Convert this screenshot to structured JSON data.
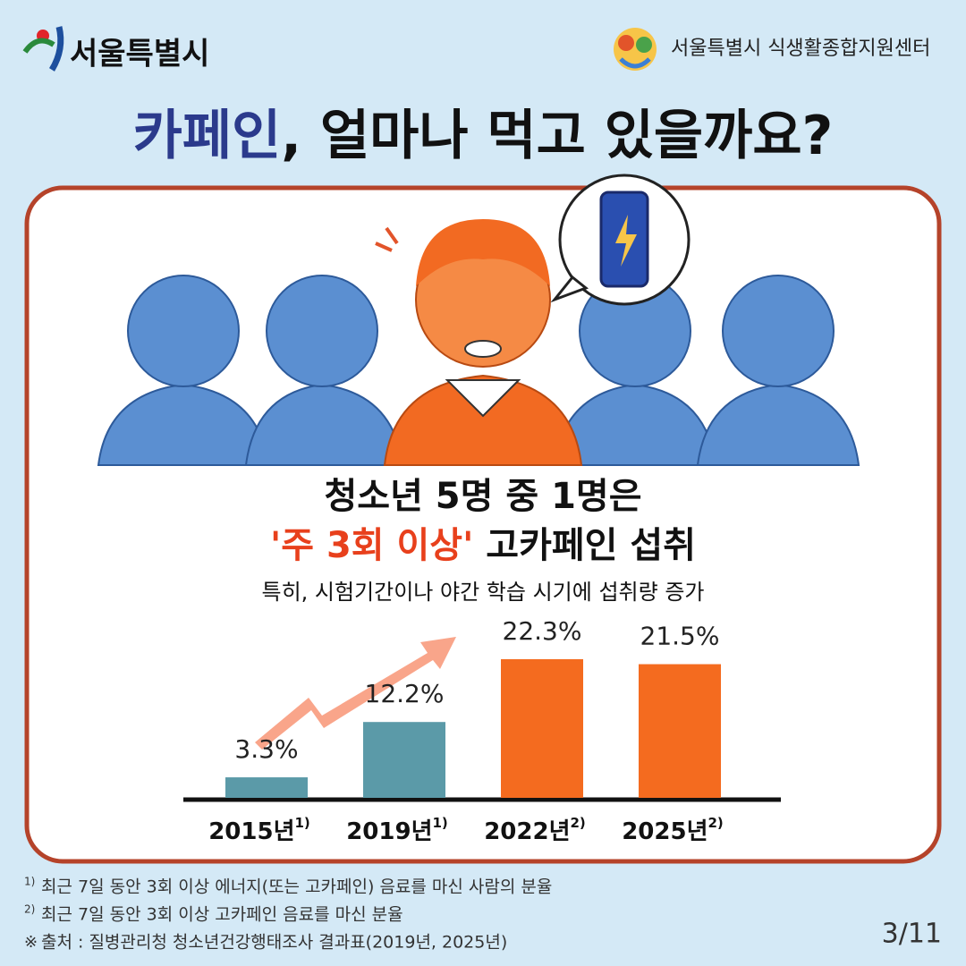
{
  "header": {
    "logo_left": "서울특별시",
    "logo_right": "서울특별시 식생활종합지원센터"
  },
  "title": {
    "highlight": "카페인",
    "rest": ", 얼마나 먹고 있을까요?"
  },
  "headline": {
    "line1": "청소년 5명 중 1명은",
    "line2_highlight": "'주 3회 이상'",
    "line2_rest": " 고카페인 섭취",
    "subline": "특히, 시험기간이나 야간 학습 시기에 섭취량 증가"
  },
  "chart_data": {
    "type": "bar",
    "categories": [
      "2015년",
      "2019년",
      "2022년",
      "2025년"
    ],
    "category_notes": [
      "1)",
      "1)",
      "2)",
      "2)"
    ],
    "values": [
      3.3,
      12.2,
      22.3,
      21.5
    ],
    "value_labels": [
      "3.3%",
      "12.2%",
      "22.3%",
      "21.5%"
    ],
    "colors": [
      "#5b9aa8",
      "#5b9aa8",
      "#f46b1f",
      "#f46b1f"
    ]
  },
  "footnotes": [
    {
      "mark": "1)",
      "text": "최근 7일 동안 3회 이상 에너지(또는 고카페인) 음료를 마신 사람의 분율"
    },
    {
      "mark": "2)",
      "text": "최근 7일 동안 3회 이상 고카페인 음료를 마신 분율"
    },
    {
      "mark": "※",
      "text": "출처 : 질병관리청 청소년건강행태조사 결과표(2019년, 2025년)"
    }
  ],
  "page_number": "3/11"
}
